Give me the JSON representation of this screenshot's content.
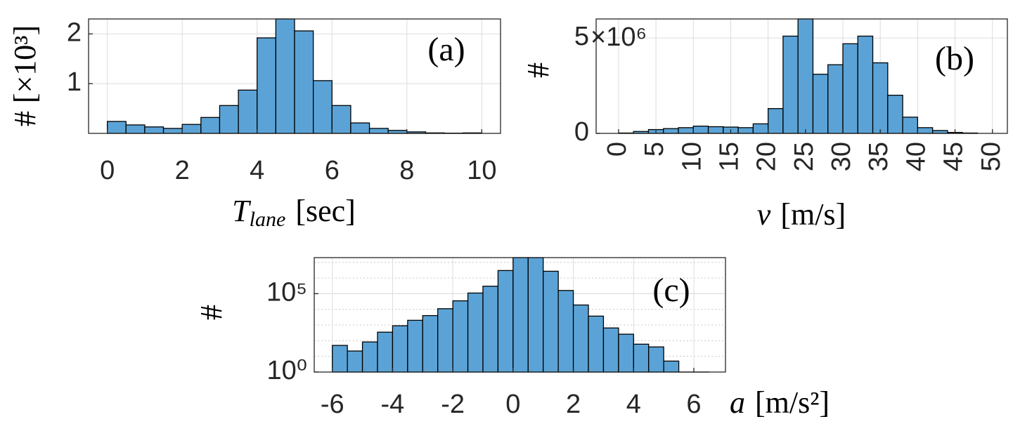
{
  "chart_data": [
    {
      "type": "histogram",
      "annotation": "(a)",
      "xlabel": {
        "symbol": "T",
        "subscript": "lane",
        "unit": "[sec]"
      },
      "ylabel": "# [×10³]",
      "bins": [
        0,
        0.5,
        1,
        1.5,
        2,
        2.5,
        3,
        3.5,
        4,
        4.5,
        5,
        5.5,
        6,
        6.5,
        7,
        7.5,
        8,
        8.5,
        9,
        9.5,
        10
      ],
      "values": [
        0.24,
        0.17,
        0.13,
        0.1,
        0.18,
        0.32,
        0.56,
        0.87,
        1.92,
        2.3,
        2.06,
        1.06,
        0.56,
        0.21,
        0.1,
        0.06,
        0.03,
        0.01,
        0.005,
        0.01
      ],
      "color": "#5ba3d6",
      "edgecolor": "#000000",
      "xlim": [
        -0.5,
        10.5
      ],
      "xticks": [
        0,
        2,
        4,
        6,
        8,
        10
      ],
      "ylim": [
        0,
        2.3
      ],
      "yticks": [
        1,
        2
      ],
      "grid": true
    },
    {
      "type": "histogram",
      "annotation": "(b)",
      "xlabel": {
        "symbol": "v",
        "unit": "[m/s]"
      },
      "ylabel": "#",
      "y_offset_label": "×10⁶",
      "bins": [
        0,
        2,
        4,
        6,
        8,
        10,
        12,
        14,
        16,
        18,
        20,
        22,
        24,
        26,
        28,
        30,
        32,
        34,
        36,
        38,
        40,
        42,
        44,
        46,
        48
      ],
      "values": [
        0.02,
        0.1,
        0.2,
        0.25,
        0.3,
        0.38,
        0.35,
        0.33,
        0.3,
        0.5,
        1.3,
        5.1,
        6,
        3.1,
        3.6,
        4.7,
        5.1,
        3.7,
        2,
        0.85,
        0.3,
        0.15,
        0.05,
        0.02
      ],
      "color": "#5ba3d6",
      "edgecolor": "#000000",
      "xlim": [
        -3,
        52
      ],
      "xticks": [
        0,
        5,
        10,
        15,
        20,
        25,
        30,
        35,
        40,
        45,
        50
      ],
      "xtick_rotation": 90,
      "ylim": [
        0,
        6
      ],
      "yticks": [
        0,
        5
      ],
      "grid": true
    },
    {
      "type": "histogram",
      "annotation": "(c)",
      "xlabel": {
        "symbol": "a",
        "unit": "[m/s²]"
      },
      "ylabel": "#",
      "bins": [
        -6,
        -5.5,
        -5,
        -4.5,
        -4,
        -3.5,
        -3,
        -2.5,
        -2,
        -1.5,
        -1,
        -0.5,
        0,
        0.5,
        1,
        1.5,
        2,
        2.5,
        3,
        3.5,
        4,
        4.5,
        5,
        5.5,
        6,
        6.5
      ],
      "values": [
        50,
        22,
        83,
        350,
        900,
        2000,
        4000,
        11000,
        35000,
        110000,
        300000,
        3000000,
        20000000,
        20000000,
        2700000,
        160000,
        19000,
        3700,
        650,
        260,
        60,
        40,
        5,
        1,
        1
      ],
      "color": "#5ba3d6",
      "edgecolor": "#000000",
      "xlim": [
        -6.6,
        7.05
      ],
      "xticks": [
        -6,
        -4,
        -2,
        0,
        2,
        4,
        6
      ],
      "ylim": [
        1,
        20000000
      ],
      "ylog": true,
      "yticks": [
        {
          "value": 1,
          "label": "10⁰"
        },
        {
          "value": 100000,
          "label": "10⁵"
        }
      ],
      "grid": true,
      "minor_grid": true
    }
  ]
}
